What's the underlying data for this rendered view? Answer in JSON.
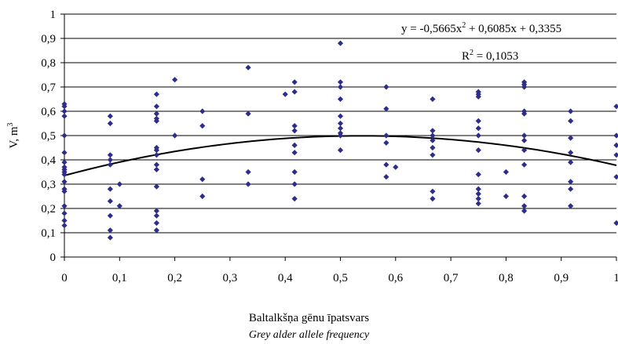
{
  "chart_data": {
    "type": "scatter",
    "xlabel": "Baltalkšņa gēnu īpatsvars",
    "xlabel_en": "Grey alder allele frequency",
    "ylabel": "V, m",
    "ylabel_sup": "3",
    "xlim": [
      0,
      1
    ],
    "ylim": [
      0,
      1
    ],
    "x_ticks": [
      "0",
      "0,1",
      "0,2",
      "0,3",
      "0,4",
      "0,5",
      "0,6",
      "0,7",
      "0,8",
      "0,9",
      "1"
    ],
    "y_ticks": [
      "0",
      "0,1",
      "0,2",
      "0,3",
      "0,4",
      "0,5",
      "0,6",
      "0,7",
      "0,8",
      "0,9",
      "1"
    ],
    "grid": "horizontal",
    "marker_color": "#2e2e8a",
    "trend_color": "#000000",
    "equation": {
      "text_pre": "y = -0,5665x",
      "sup": "2",
      "text_post": " + 0,6085x + 0,3355",
      "coeffs": [
        -0.5665,
        0.6085,
        0.3355
      ]
    },
    "r2": {
      "text_pre": "R",
      "sup": "2",
      "text_post": " = 0,1053"
    },
    "points": [
      [
        0,
        0.63
      ],
      [
        0,
        0.62
      ],
      [
        0,
        0.6
      ],
      [
        0,
        0.58
      ],
      [
        0,
        0.5
      ],
      [
        0,
        0.43
      ],
      [
        0,
        0.39
      ],
      [
        0,
        0.37
      ],
      [
        0,
        0.36
      ],
      [
        0,
        0.35
      ],
      [
        0,
        0.34
      ],
      [
        0,
        0.31
      ],
      [
        0,
        0.28
      ],
      [
        0,
        0.27
      ],
      [
        0,
        0.21
      ],
      [
        0,
        0.18
      ],
      [
        0,
        0.15
      ],
      [
        0,
        0.13
      ],
      [
        0.083,
        0.58
      ],
      [
        0.083,
        0.55
      ],
      [
        0.083,
        0.42
      ],
      [
        0.083,
        0.4
      ],
      [
        0.083,
        0.38
      ],
      [
        0.083,
        0.28
      ],
      [
        0.083,
        0.23
      ],
      [
        0.083,
        0.17
      ],
      [
        0.083,
        0.11
      ],
      [
        0.083,
        0.08
      ],
      [
        0.1,
        0.3
      ],
      [
        0.1,
        0.21
      ],
      [
        0.167,
        0.67
      ],
      [
        0.167,
        0.62
      ],
      [
        0.167,
        0.59
      ],
      [
        0.167,
        0.57
      ],
      [
        0.167,
        0.56
      ],
      [
        0.167,
        0.45
      ],
      [
        0.167,
        0.44
      ],
      [
        0.167,
        0.42
      ],
      [
        0.167,
        0.38
      ],
      [
        0.167,
        0.36
      ],
      [
        0.167,
        0.29
      ],
      [
        0.167,
        0.19
      ],
      [
        0.167,
        0.17
      ],
      [
        0.167,
        0.14
      ],
      [
        0.167,
        0.11
      ],
      [
        0.2,
        0.73
      ],
      [
        0.2,
        0.5
      ],
      [
        0.25,
        0.6
      ],
      [
        0.25,
        0.54
      ],
      [
        0.25,
        0.32
      ],
      [
        0.25,
        0.25
      ],
      [
        0.333,
        0.78
      ],
      [
        0.333,
        0.59
      ],
      [
        0.333,
        0.35
      ],
      [
        0.333,
        0.3
      ],
      [
        0.4,
        0.67
      ],
      [
        0.417,
        0.72
      ],
      [
        0.417,
        0.68
      ],
      [
        0.417,
        0.54
      ],
      [
        0.417,
        0.52
      ],
      [
        0.417,
        0.46
      ],
      [
        0.417,
        0.43
      ],
      [
        0.417,
        0.35
      ],
      [
        0.417,
        0.3
      ],
      [
        0.417,
        0.24
      ],
      [
        0.5,
        0.88
      ],
      [
        0.5,
        0.72
      ],
      [
        0.5,
        0.7
      ],
      [
        0.5,
        0.65
      ],
      [
        0.5,
        0.58
      ],
      [
        0.5,
        0.55
      ],
      [
        0.5,
        0.53
      ],
      [
        0.5,
        0.51
      ],
      [
        0.5,
        0.5
      ],
      [
        0.5,
        0.44
      ],
      [
        0.583,
        0.7
      ],
      [
        0.583,
        0.61
      ],
      [
        0.583,
        0.5
      ],
      [
        0.583,
        0.47
      ],
      [
        0.583,
        0.38
      ],
      [
        0.583,
        0.33
      ],
      [
        0.6,
        0.37
      ],
      [
        0.667,
        0.65
      ],
      [
        0.667,
        0.52
      ],
      [
        0.667,
        0.5
      ],
      [
        0.667,
        0.48
      ],
      [
        0.667,
        0.45
      ],
      [
        0.667,
        0.42
      ],
      [
        0.667,
        0.27
      ],
      [
        0.667,
        0.24
      ],
      [
        0.75,
        0.68
      ],
      [
        0.75,
        0.67
      ],
      [
        0.75,
        0.66
      ],
      [
        0.75,
        0.56
      ],
      [
        0.75,
        0.53
      ],
      [
        0.75,
        0.5
      ],
      [
        0.75,
        0.44
      ],
      [
        0.75,
        0.34
      ],
      [
        0.75,
        0.28
      ],
      [
        0.75,
        0.26
      ],
      [
        0.75,
        0.24
      ],
      [
        0.75,
        0.22
      ],
      [
        0.8,
        0.35
      ],
      [
        0.8,
        0.25
      ],
      [
        0.833,
        0.72
      ],
      [
        0.833,
        0.71
      ],
      [
        0.833,
        0.7
      ],
      [
        0.833,
        0.6
      ],
      [
        0.833,
        0.59
      ],
      [
        0.833,
        0.5
      ],
      [
        0.833,
        0.48
      ],
      [
        0.833,
        0.44
      ],
      [
        0.833,
        0.38
      ],
      [
        0.833,
        0.25
      ],
      [
        0.833,
        0.21
      ],
      [
        0.833,
        0.19
      ],
      [
        0.917,
        0.6
      ],
      [
        0.917,
        0.56
      ],
      [
        0.917,
        0.49
      ],
      [
        0.917,
        0.43
      ],
      [
        0.917,
        0.39
      ],
      [
        0.917,
        0.31
      ],
      [
        0.917,
        0.28
      ],
      [
        0.917,
        0.21
      ],
      [
        1,
        0.62
      ],
      [
        1,
        0.5
      ],
      [
        1,
        0.46
      ],
      [
        1,
        0.42
      ],
      [
        1,
        0.33
      ],
      [
        1,
        0.14
      ]
    ]
  }
}
